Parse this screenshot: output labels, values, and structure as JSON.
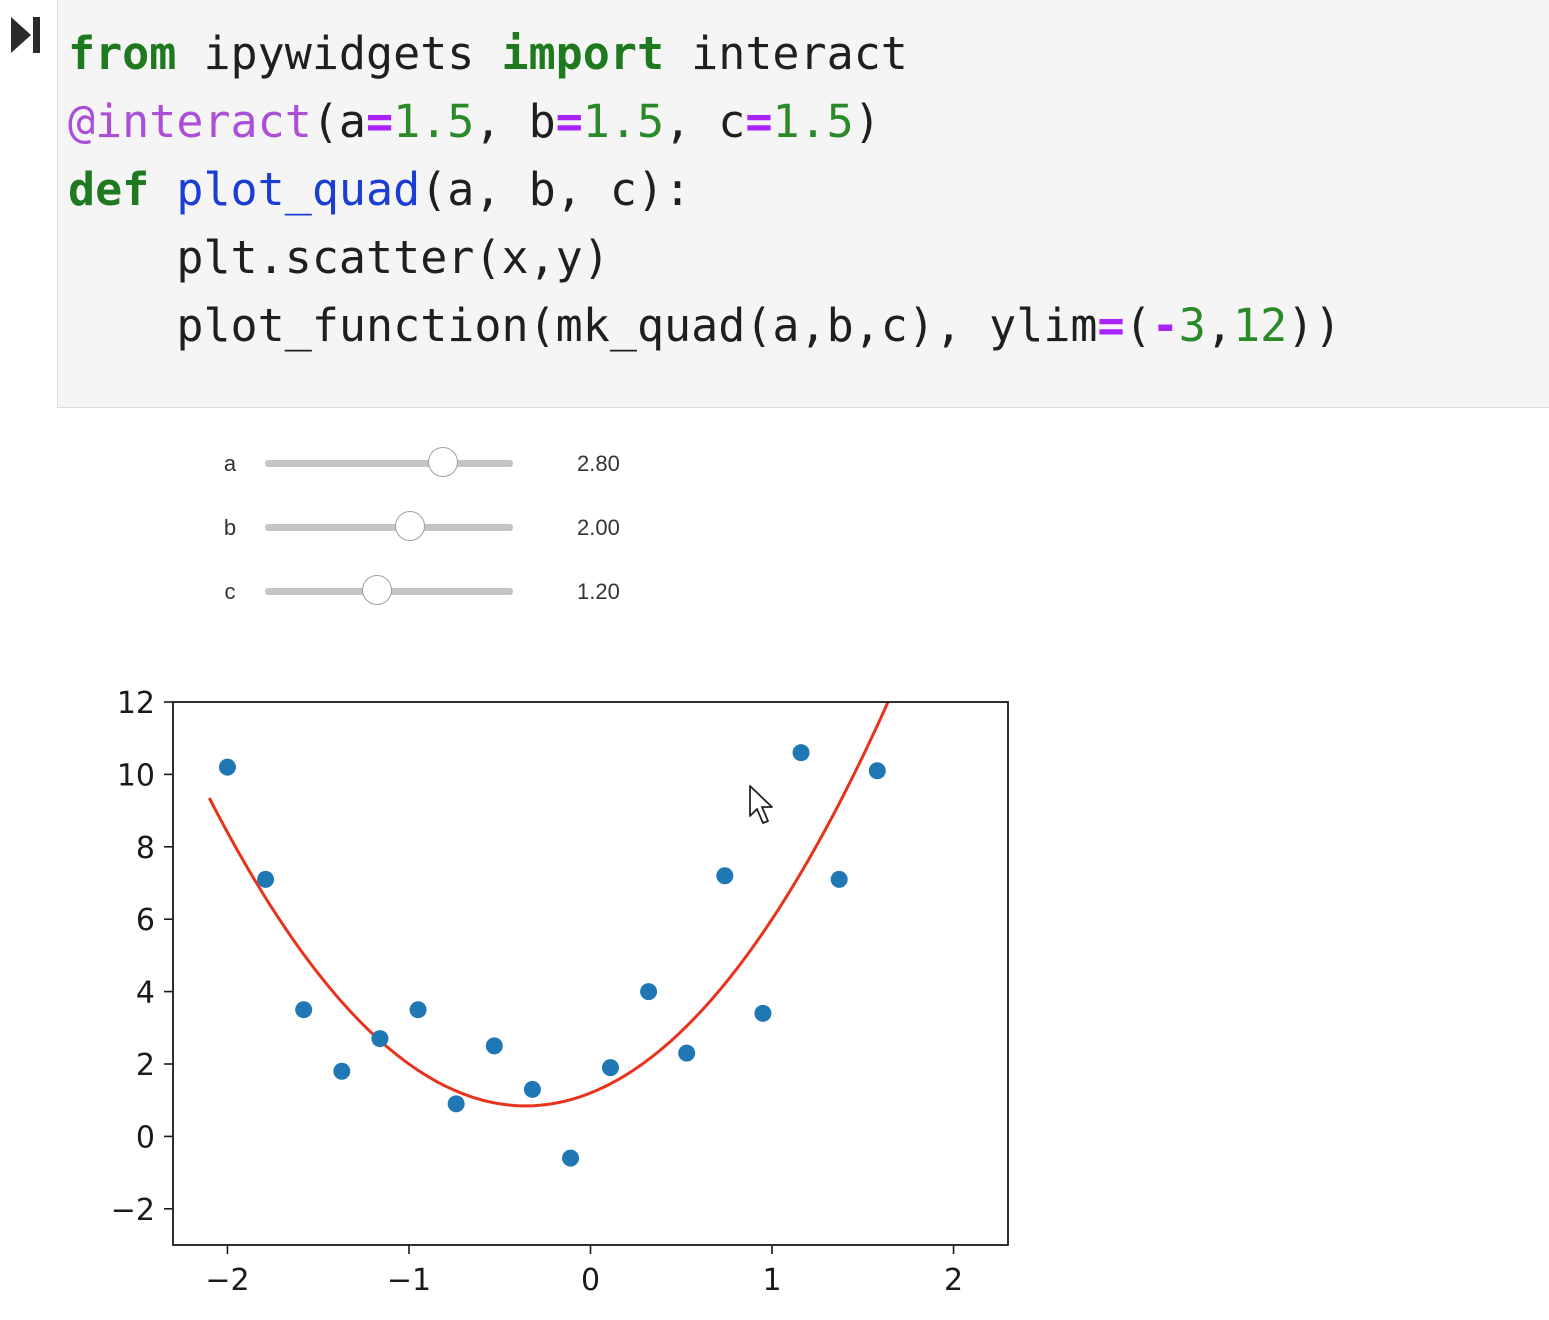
{
  "cell": {
    "code_lines": [
      "from ipywidgets import interact",
      "@interact(a=1.5, b=1.5, c=1.5)",
      "def plot_quad(a, b, c):",
      "    plt.scatter(x,y)",
      "    plot_function(mk_quad(a,b,c), ylim=(-3,12))"
    ]
  },
  "widgets": [
    {
      "label": "a",
      "value": 2.8,
      "display": "2.80",
      "min": -1.5,
      "max": 4.5
    },
    {
      "label": "b",
      "value": 2.0,
      "display": "2.00",
      "min": -1.5,
      "max": 4.5
    },
    {
      "label": "c",
      "value": 1.2,
      "display": "1.20",
      "min": -1.5,
      "max": 4.5
    }
  ],
  "colors": {
    "scatter": "#1f77b4",
    "curve": "#e8331c",
    "keyword": "#1f7a1f",
    "decorator": "#aa4fd6",
    "function_name": "#1a3ed1",
    "number": "#2a8a2a"
  },
  "icons": {
    "run": "run-cell-icon",
    "cursor": "mouse-pointer-icon"
  },
  "chart_data": {
    "type": "scatter",
    "title": "",
    "xlabel": "",
    "ylabel": "",
    "xlim": [
      -2.3,
      2.3
    ],
    "ylim": [
      -3,
      12
    ],
    "x_ticks": [
      -2,
      -1,
      0,
      1,
      2
    ],
    "x_tick_labels": [
      "−2",
      "−1",
      "0",
      "1",
      "2"
    ],
    "y_ticks": [
      -2,
      0,
      2,
      4,
      6,
      8,
      10,
      12
    ],
    "y_tick_labels": [
      "−2",
      "0",
      "2",
      "4",
      "6",
      "8",
      "10",
      "12"
    ],
    "grid": false,
    "series": [
      {
        "type": "scatter",
        "x": [
          -2.0,
          -1.79,
          -1.58,
          -1.37,
          -1.16,
          -0.95,
          -0.74,
          -0.53,
          -0.32,
          -0.11,
          0.11,
          0.32,
          0.53,
          0.74,
          0.95,
          1.16,
          1.37,
          1.58
        ],
        "y": [
          10.2,
          7.1,
          3.5,
          1.8,
          2.7,
          3.5,
          0.9,
          2.5,
          1.3,
          -0.6,
          1.9,
          4.0,
          2.3,
          7.2,
          3.4,
          10.6,
          7.1,
          10.1
        ]
      },
      {
        "type": "line",
        "function": "a*x^2 + b*x + c",
        "coefficients": {
          "a": 2.8,
          "b": 2.0,
          "c": 1.2
        },
        "x_range": [
          -2.1,
          2.1
        ]
      }
    ]
  }
}
